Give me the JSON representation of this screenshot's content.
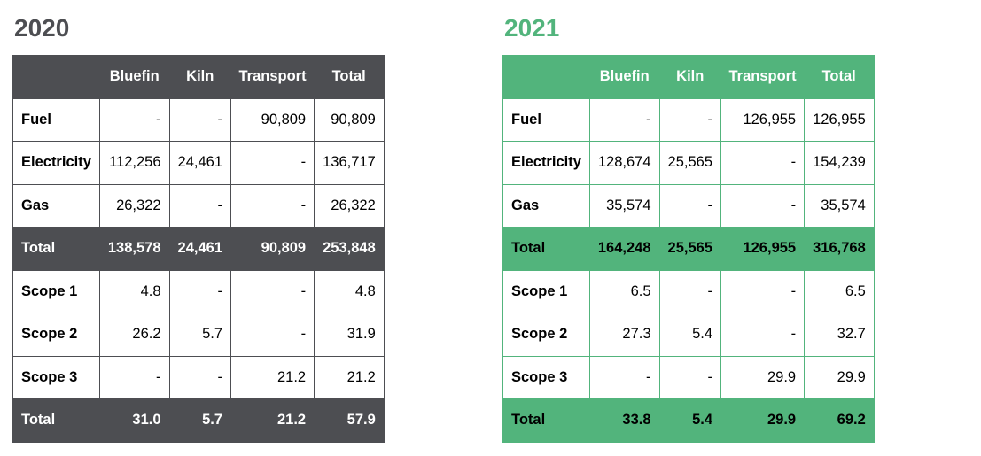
{
  "headers": [
    "",
    "Bluefin",
    "Kiln",
    "Transport",
    "Total"
  ],
  "colors": {
    "y2020": "#4d4e52",
    "y2021": "#52b47c"
  },
  "panels": [
    {
      "year": "2020",
      "rows": [
        {
          "label": "Fuel",
          "cells": [
            "-",
            "-",
            "90,809",
            "90,809"
          ]
        },
        {
          "label": "Electricity",
          "cells": [
            "112,256",
            "24,461",
            "-",
            "136,717"
          ]
        },
        {
          "label": "Gas",
          "cells": [
            "26,322",
            "-",
            "-",
            "26,322"
          ]
        },
        {
          "label": "Total",
          "cells": [
            "138,578",
            "24,461",
            "90,809",
            "253,848"
          ]
        },
        {
          "label": "Scope 1",
          "cells": [
            "4.8",
            "-",
            "-",
            "4.8"
          ]
        },
        {
          "label": "Scope 2",
          "cells": [
            "26.2",
            "5.7",
            "-",
            "31.9"
          ]
        },
        {
          "label": "Scope 3",
          "cells": [
            "-",
            "-",
            "21.2",
            "21.2"
          ]
        },
        {
          "label": "Total",
          "cells": [
            "31.0",
            "5.7",
            "21.2",
            "57.9"
          ]
        }
      ]
    },
    {
      "year": "2021",
      "rows": [
        {
          "label": "Fuel",
          "cells": [
            "-",
            "-",
            "126,955",
            "126,955"
          ]
        },
        {
          "label": "Electricity",
          "cells": [
            "128,674",
            "25,565",
            "-",
            "154,239"
          ]
        },
        {
          "label": "Gas",
          "cells": [
            "35,574",
            "-",
            "-",
            "35,574"
          ]
        },
        {
          "label": "Total",
          "cells": [
            "164,248",
            "25,565",
            "126,955",
            "316,768"
          ]
        },
        {
          "label": "Scope 1",
          "cells": [
            "6.5",
            "-",
            "-",
            "6.5"
          ]
        },
        {
          "label": "Scope 2",
          "cells": [
            "27.3",
            "5.4",
            "-",
            "32.7"
          ]
        },
        {
          "label": "Scope 3",
          "cells": [
            "-",
            "-",
            "29.9",
            "29.9"
          ]
        },
        {
          "label": "Total",
          "cells": [
            "33.8",
            "5.4",
            "29.9",
            "69.2"
          ]
        }
      ]
    }
  ]
}
